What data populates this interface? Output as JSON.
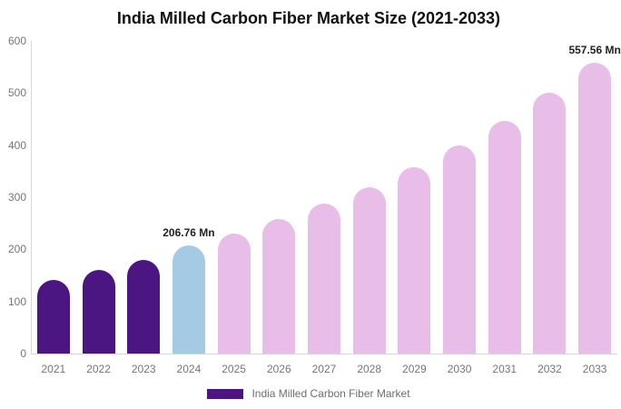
{
  "chart_data": {
    "type": "bar",
    "title": "India Milled Carbon Fiber Market Size (2021-2033)",
    "categories": [
      "2021",
      "2022",
      "2023",
      "2024",
      "2025",
      "2026",
      "2027",
      "2028",
      "2029",
      "2030",
      "2031",
      "2032",
      "2033"
    ],
    "values": [
      142,
      161,
      180,
      206.76,
      230,
      258,
      288,
      320,
      358,
      399,
      447,
      500,
      557.56
    ],
    "bar_colors": [
      "#4b1582",
      "#4b1582",
      "#4b1582",
      "#a4cbe3",
      "#e8bde8",
      "#e8bde8",
      "#e8bde8",
      "#e8bde8",
      "#e8bde8",
      "#e8bde8",
      "#e8bde8",
      "#e8bde8",
      "#e8bde8"
    ],
    "ylim": [
      0,
      600
    ],
    "yticks": [
      0,
      100,
      200,
      300,
      400,
      500,
      600
    ],
    "grid": "off",
    "xlabel": "",
    "ylabel": "",
    "annotations": [
      {
        "category": "2024",
        "text": "206.76 Mn"
      },
      {
        "category": "2033",
        "text": "557.56 Mn"
      }
    ],
    "legend": {
      "label": "India Milled Carbon Fiber Market",
      "color": "#4b1582",
      "position": "bottom"
    }
  },
  "colors": {
    "axis_line": "#d6d6d6",
    "axis_text": "#757575",
    "data_label": "#222222",
    "legend_text": "#6e6e6e",
    "background": "#ffffff"
  }
}
